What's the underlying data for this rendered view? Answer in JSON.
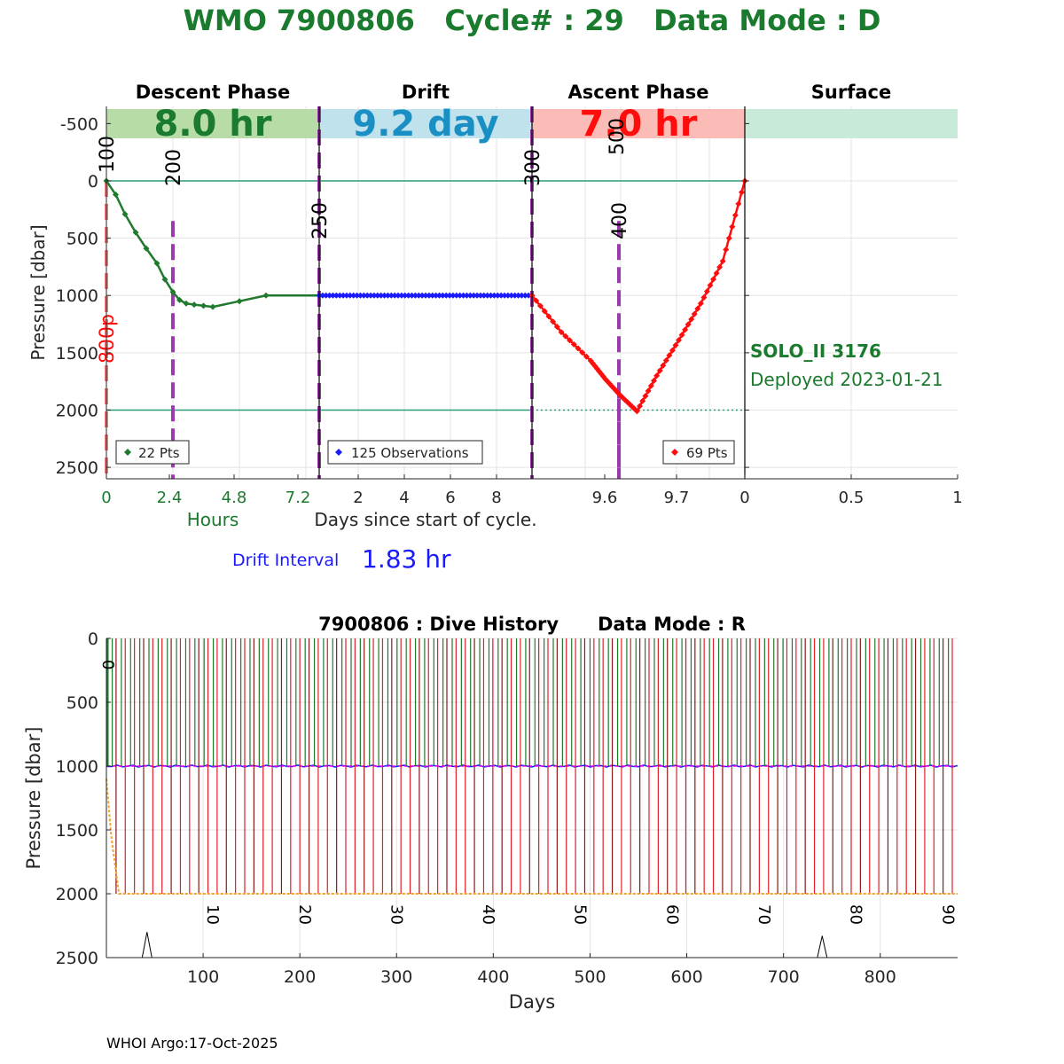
{
  "header": {
    "title": "WMO 7900806   Cycle# : 29   Data Mode : D",
    "color": "#1a7a2e"
  },
  "top_panel": {
    "phase_titles": [
      "Descent Phase",
      "Drift",
      "Ascent Phase",
      "Surface"
    ],
    "durations": [
      "8.0 hr",
      "9.2 day",
      "7.0 hr",
      ""
    ],
    "duration_colors": [
      "#1a7a2e",
      "#1a8fc4",
      "#ff0d0d",
      "#1a7a2e"
    ],
    "band_colors": [
      "#b8dca8",
      "#bfe2ec",
      "#fbbcb7",
      "#c8ead9"
    ],
    "ylabel": "Pressure [dbar]",
    "ytick_labels": [
      "-500",
      "0",
      "500",
      "1000",
      "1500",
      "2000",
      "2500"
    ],
    "descent_xticks": [
      "0",
      "2.4",
      "4.8",
      "7.2"
    ],
    "drift_xticks": [
      "2",
      "4",
      "6",
      "8"
    ],
    "ascent_xticks": [
      "9.6",
      "9.7",
      "0"
    ],
    "surface_xticks": [
      "0",
      "0.5",
      "1"
    ],
    "hours_label": "Hours",
    "days_label": "Days since start of cycle.",
    "marker_labels": [
      "100",
      "200",
      "250",
      "300",
      "400",
      "500"
    ],
    "park_label": "800p",
    "legend_descent": "22 Pts",
    "legend_drift": "125 Observations",
    "legend_ascent": "69 Pts",
    "float_model": "SOLO_II 3176",
    "deployed": "Deployed 2023-01-21",
    "drift_interval_label": "Drift Interval",
    "drift_interval_value": "1.83 hr"
  },
  "bottom_panel": {
    "title": "7900806 : Dive History      Data Mode : R",
    "ylabel": "Pressure [dbar]",
    "xlabel": "Days",
    "ytick_labels": [
      "0",
      "500",
      "1000",
      "1500",
      "2000",
      "2500"
    ],
    "xtick_labels": [
      "100",
      "200",
      "300",
      "400",
      "500",
      "600",
      "700",
      "800"
    ],
    "cycle_labels": [
      "0",
      "10",
      "20",
      "30",
      "40",
      "50",
      "60",
      "70",
      "80",
      "90"
    ]
  },
  "footer": "WHOI Argo:17-Oct-2025",
  "chart_data": [
    {
      "type": "line",
      "name": "Descent Phase",
      "x_units": "hours",
      "y_units": "dbar",
      "xlim": [
        0,
        8.0
      ],
      "ylim": [
        2600,
        -650
      ],
      "series": [
        {
          "name": "22 Pts",
          "color": "#1f7a2e",
          "x": [
            0,
            0.35,
            0.7,
            1.1,
            1.5,
            1.9,
            2.2,
            2.5,
            2.75,
            3.0,
            3.3,
            3.65,
            4.0,
            5.0,
            6.0,
            8.0
          ],
          "y": [
            0,
            120,
            290,
            450,
            590,
            720,
            860,
            970,
            1040,
            1070,
            1080,
            1090,
            1100,
            1050,
            1000,
            1000
          ]
        }
      ]
    },
    {
      "type": "line",
      "name": "Drift",
      "x_units": "days",
      "y_units": "dbar",
      "xlim": [
        0.33,
        9.5
      ],
      "ylim": [
        2600,
        -650
      ],
      "series": [
        {
          "name": "125 Observations",
          "color": "#1a1aff",
          "x": [
            0.33,
            9.5
          ],
          "y": [
            1000,
            1000
          ]
        }
      ]
    },
    {
      "type": "line",
      "name": "Ascent Phase",
      "x_units": "days",
      "y_units": "dbar",
      "xlim": [
        9.5,
        9.79
      ],
      "ylim": [
        2600,
        -650
      ],
      "series": [
        {
          "name": "69 Pts",
          "color": "#ff0d0d",
          "x": [
            9.5,
            9.54,
            9.58,
            9.6,
            9.62,
            9.643,
            9.67,
            9.7,
            9.73,
            9.76,
            9.79
          ],
          "y": [
            1000,
            1320,
            1570,
            1730,
            1870,
            2010,
            1700,
            1390,
            1070,
            700,
            0
          ]
        }
      ]
    },
    {
      "type": "line",
      "name": "Dive History",
      "title": "7900806 : Dive History      Data Mode : R",
      "xlabel": "Days",
      "ylabel": "Pressure [dbar]",
      "xlim": [
        0,
        880
      ],
      "ylim": [
        2500,
        0
      ],
      "cycle_length_days": 9.5,
      "cycles": 92,
      "park_pressure": 1000,
      "profile_pressure": 2000,
      "grid": true
    }
  ]
}
